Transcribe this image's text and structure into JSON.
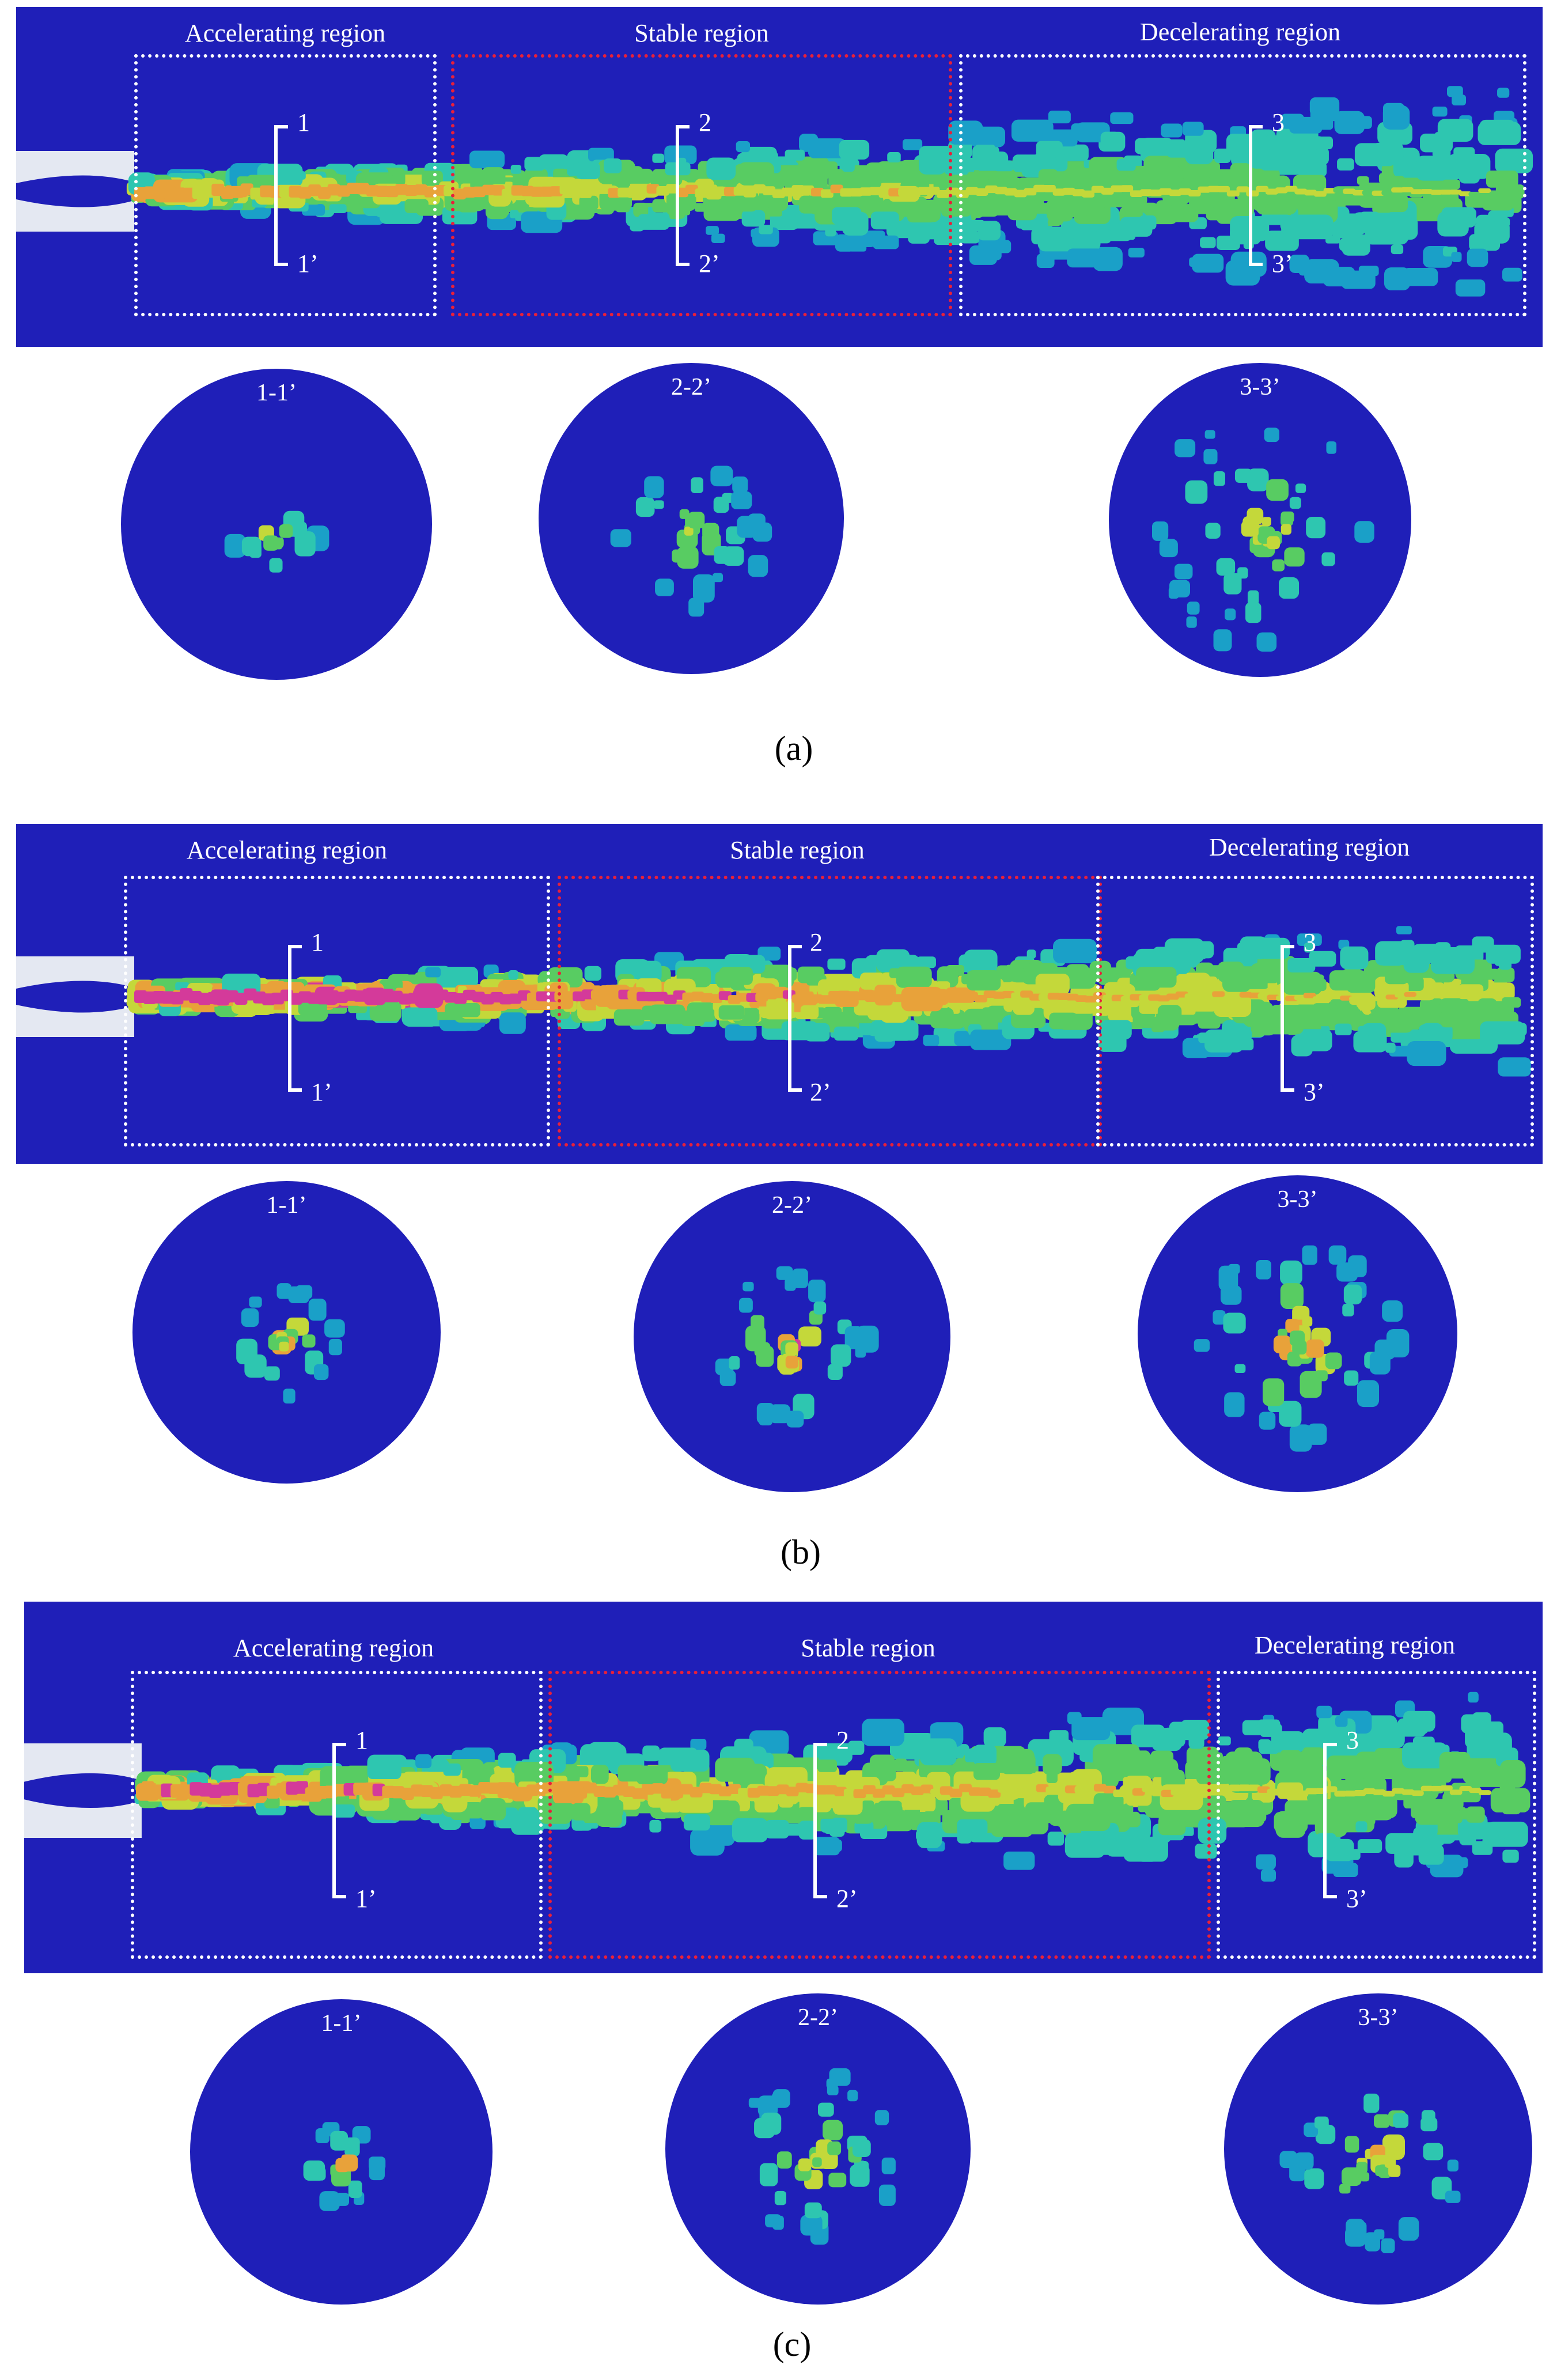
{
  "colors": {
    "background": "#1f1fb8",
    "low": "#1aa0c8",
    "mid_low": "#2ec6b0",
    "mid": "#58cc62",
    "mid_high": "#c4d83a",
    "high": "#e8a23a",
    "peak": "#d43a9a",
    "stable_box": "#e8203a",
    "nozzle": "#e4e8f2"
  },
  "panels": [
    {
      "id": "a",
      "caption": "(a)",
      "regions": [
        "Accelerating region",
        "Stable region",
        "Decelerating region"
      ],
      "markers": [
        {
          "top": "1",
          "bottom": "1’"
        },
        {
          "top": "2",
          "bottom": "2’"
        },
        {
          "top": "3",
          "bottom": "3’"
        }
      ],
      "sections": [
        "1-1’",
        "2-2’",
        "3-3’"
      ],
      "jet_intensity": 0.55
    },
    {
      "id": "b",
      "caption": "(b)",
      "regions": [
        "Accelerating region",
        "Stable region",
        "Decelerating region"
      ],
      "markers": [
        {
          "top": "1",
          "bottom": "1’"
        },
        {
          "top": "2",
          "bottom": "2’"
        },
        {
          "top": "3",
          "bottom": "3’"
        }
      ],
      "sections": [
        "1-1’",
        "2-2’",
        "3-3’"
      ],
      "jet_intensity": 0.95
    },
    {
      "id": "c",
      "caption": "(c)",
      "regions": [
        "Accelerating region",
        "Stable region",
        "Decelerating region"
      ],
      "markers": [
        {
          "top": "1",
          "bottom": "1’"
        },
        {
          "top": "2",
          "bottom": "2’"
        },
        {
          "top": "3",
          "bottom": "3’"
        }
      ],
      "sections": [
        "1-1’",
        "2-2’",
        "3-3’"
      ],
      "jet_intensity": 0.75
    }
  ]
}
